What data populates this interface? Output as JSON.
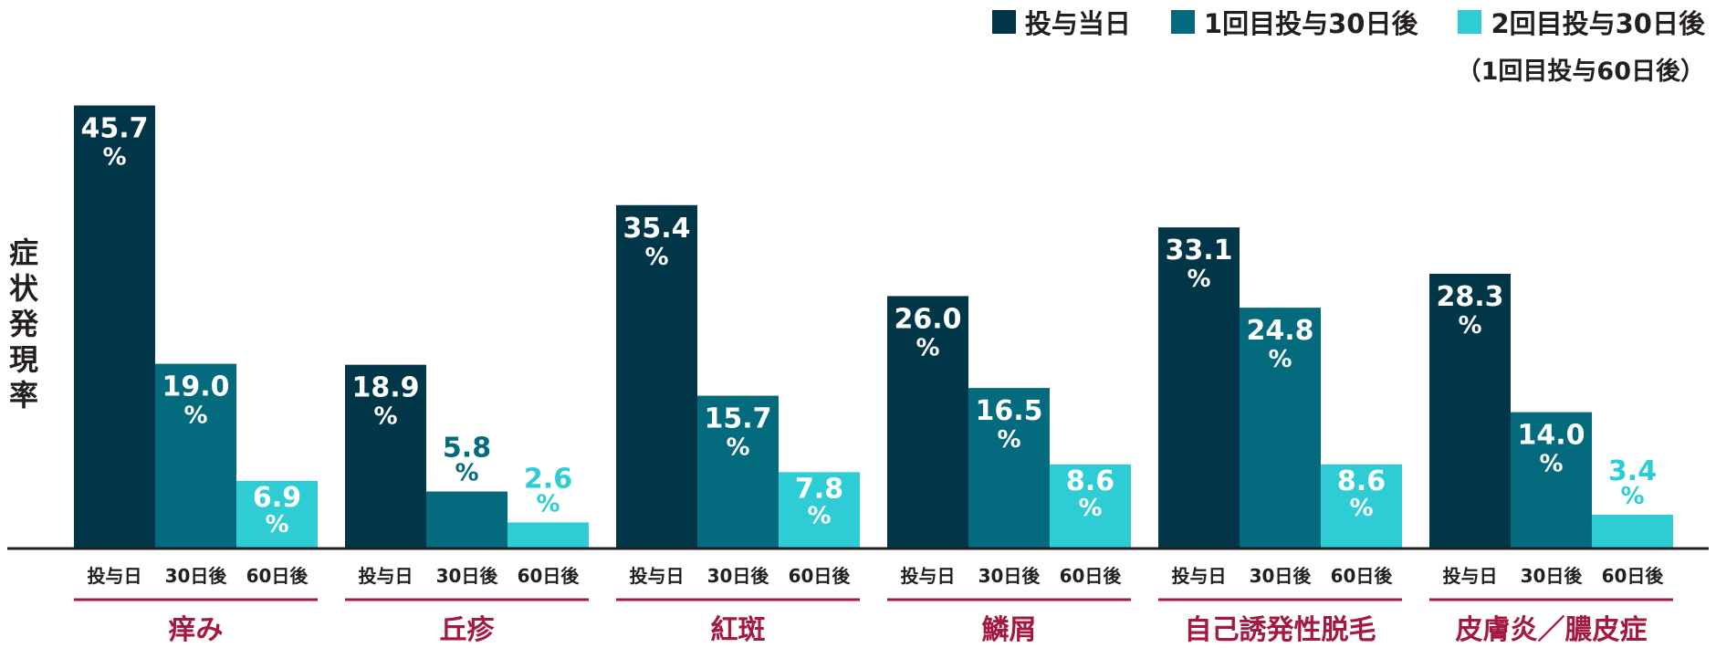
{
  "chart_data": {
    "type": "bar",
    "ylabel": "症状発現率",
    "ylim": [
      0,
      50
    ],
    "grid": false,
    "legend_position": "top-right",
    "legend_note": "（1回目投与60日後）",
    "series_names": [
      "投与当日",
      "1回目投与30日後",
      "2回目投与30日後"
    ],
    "series_colors": [
      "#003648",
      "#046a7e",
      "#2ecdd5"
    ],
    "value_label_colors": [
      "#ffffff",
      "#ffffff",
      "#ffffff"
    ],
    "value_label_colors_outside": "#046a7e",
    "outside_label_color_light": "#2ecdd5",
    "sub_labels": [
      "投与日",
      "30日後",
      "60日後"
    ],
    "category_color": "#a4193f",
    "unit": "%",
    "categories": [
      {
        "name": "痒み",
        "values": [
          45.7,
          19.0,
          6.9
        ]
      },
      {
        "name": "丘疹",
        "values": [
          18.9,
          5.8,
          2.6
        ]
      },
      {
        "name": "紅斑",
        "values": [
          35.4,
          15.7,
          7.8
        ]
      },
      {
        "name": "鱗屑",
        "values": [
          26.0,
          16.5,
          8.6
        ]
      },
      {
        "name": "自己誘発性脱毛",
        "values": [
          33.1,
          24.8,
          8.6
        ]
      },
      {
        "name": "皮膚炎／膿皮症",
        "values": [
          28.3,
          14.0,
          3.4
        ]
      }
    ]
  }
}
